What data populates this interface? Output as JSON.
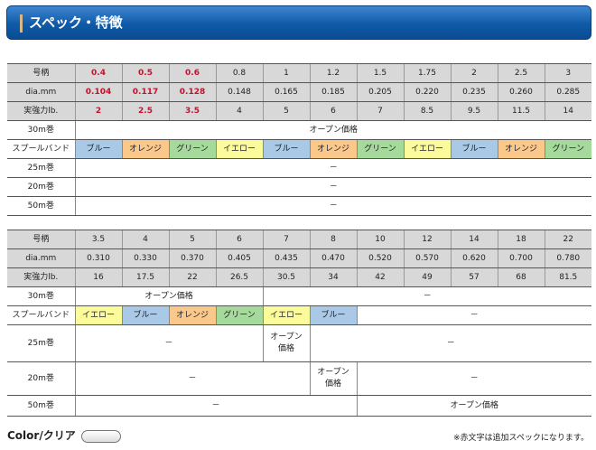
{
  "header": {
    "title": "スペック・特徴"
  },
  "colors": {
    "blue": "#a9c9e6",
    "orange": "#fbc88c",
    "green": "#a6da9c",
    "yellow": "#fcfb9c",
    "red_text": "#c8102e"
  },
  "tables": [
    {
      "rows": [
        {
          "label": "号柄",
          "kind": "gray",
          "cells": [
            {
              "text": "0.4",
              "red": true
            },
            {
              "text": "0.5",
              "red": true
            },
            {
              "text": "0.6",
              "red": true
            },
            {
              "text": "0.8"
            },
            {
              "text": "1"
            },
            {
              "text": "1.2"
            },
            {
              "text": "1.5"
            },
            {
              "text": "1.75"
            },
            {
              "text": "2"
            },
            {
              "text": "2.5"
            },
            {
              "text": "3"
            }
          ]
        },
        {
          "label": "dia.mm",
          "kind": "gray",
          "cells": [
            {
              "text": "0.104",
              "red": true
            },
            {
              "text": "0.117",
              "red": true
            },
            {
              "text": "0.128",
              "red": true
            },
            {
              "text": "0.148"
            },
            {
              "text": "0.165"
            },
            {
              "text": "0.185"
            },
            {
              "text": "0.205"
            },
            {
              "text": "0.220"
            },
            {
              "text": "0.235"
            },
            {
              "text": "0.260"
            },
            {
              "text": "0.285"
            }
          ]
        },
        {
          "label": "実強力lb.",
          "kind": "gray",
          "cells": [
            {
              "text": "2",
              "red": true
            },
            {
              "text": "2.5",
              "red": true
            },
            {
              "text": "3.5",
              "red": true
            },
            {
              "text": "4"
            },
            {
              "text": "5"
            },
            {
              "text": "6"
            },
            {
              "text": "7"
            },
            {
              "text": "8.5"
            },
            {
              "text": "9.5"
            },
            {
              "text": "11.5"
            },
            {
              "text": "14"
            }
          ]
        },
        {
          "label": "30m巻",
          "cells": [
            {
              "text": "オープン価格",
              "span": 11
            }
          ]
        },
        {
          "label": "スプールバンド",
          "cells": [
            {
              "text": "ブルー",
              "color": "blue"
            },
            {
              "text": "オレンジ",
              "color": "orange"
            },
            {
              "text": "グリーン",
              "color": "green"
            },
            {
              "text": "イエロー",
              "color": "yellow"
            },
            {
              "text": "ブルー",
              "color": "blue"
            },
            {
              "text": "オレンジ",
              "color": "orange"
            },
            {
              "text": "グリーン",
              "color": "green"
            },
            {
              "text": "イエロー",
              "color": "yellow"
            },
            {
              "text": "ブルー",
              "color": "blue"
            },
            {
              "text": "オレンジ",
              "color": "orange"
            },
            {
              "text": "グリーン",
              "color": "green"
            }
          ]
        },
        {
          "label": "25m巻",
          "cells": [
            {
              "text": "－",
              "span": 11
            }
          ]
        },
        {
          "label": "20m巻",
          "cells": [
            {
              "text": "－",
              "span": 11
            }
          ]
        },
        {
          "label": "50m巻",
          "cells": [
            {
              "text": "－",
              "span": 11
            }
          ]
        }
      ]
    },
    {
      "rows": [
        {
          "label": "号柄",
          "kind": "gray",
          "cells": [
            {
              "text": "3.5"
            },
            {
              "text": "4"
            },
            {
              "text": "5"
            },
            {
              "text": "6"
            },
            {
              "text": "7"
            },
            {
              "text": "8"
            },
            {
              "text": "10"
            },
            {
              "text": "12"
            },
            {
              "text": "14"
            },
            {
              "text": "18"
            },
            {
              "text": "22"
            }
          ]
        },
        {
          "label": "dia.mm",
          "kind": "gray",
          "cells": [
            {
              "text": "0.310"
            },
            {
              "text": "0.330"
            },
            {
              "text": "0.370"
            },
            {
              "text": "0.405"
            },
            {
              "text": "0.435"
            },
            {
              "text": "0.470"
            },
            {
              "text": "0.520"
            },
            {
              "text": "0.570"
            },
            {
              "text": "0.620"
            },
            {
              "text": "0.700"
            },
            {
              "text": "0.780"
            }
          ]
        },
        {
          "label": "実強力lb.",
          "kind": "gray",
          "cells": [
            {
              "text": "16"
            },
            {
              "text": "17.5"
            },
            {
              "text": "22"
            },
            {
              "text": "26.5"
            },
            {
              "text": "30.5"
            },
            {
              "text": "34"
            },
            {
              "text": "42"
            },
            {
              "text": "49"
            },
            {
              "text": "57"
            },
            {
              "text": "68"
            },
            {
              "text": "81.5"
            }
          ]
        },
        {
          "label": "30m巻",
          "cells": [
            {
              "text": "オープン価格",
              "span": 4
            },
            {
              "text": "－",
              "span": 7
            }
          ]
        },
        {
          "label": "スプールバンド",
          "cells": [
            {
              "text": "イエロー",
              "color": "yellow"
            },
            {
              "text": "ブルー",
              "color": "blue"
            },
            {
              "text": "オレンジ",
              "color": "orange"
            },
            {
              "text": "グリーン",
              "color": "green"
            },
            {
              "text": "イエロー",
              "color": "yellow"
            },
            {
              "text": "ブルー",
              "color": "blue"
            },
            {
              "text": "－",
              "span": 5
            }
          ]
        },
        {
          "label": "25m巻",
          "cells": [
            {
              "text": "－",
              "span": 4
            },
            {
              "text": "オープン価格",
              "wide": true
            },
            {
              "text": "－",
              "span": 6
            }
          ]
        },
        {
          "label": "20m巻",
          "cells": [
            {
              "text": "－",
              "span": 5
            },
            {
              "text": "オープン価格",
              "wide": true
            },
            {
              "text": "－",
              "span": 5
            }
          ]
        },
        {
          "label": "50m巻",
          "cells": [
            {
              "text": "－",
              "span": 6
            },
            {
              "text": "オープン価格",
              "span": 5
            }
          ]
        }
      ]
    }
  ],
  "footer": {
    "color_label": "Color/クリア",
    "note": "※赤文字は追加スペックになります。"
  }
}
